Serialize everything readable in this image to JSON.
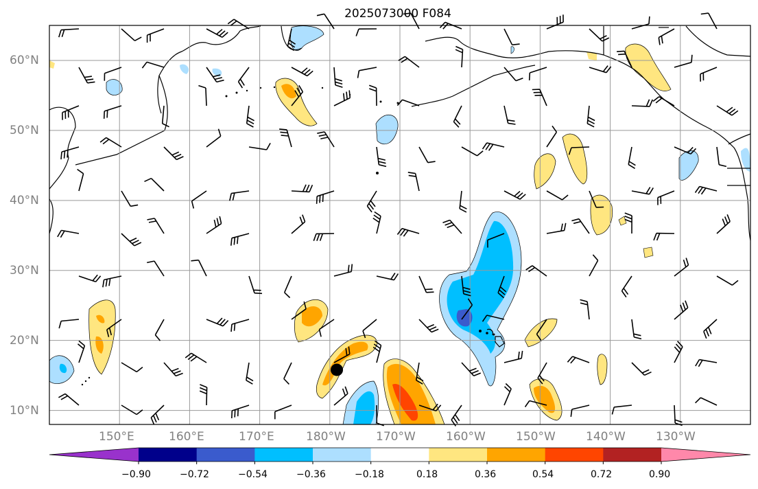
{
  "title": "2025073000 F084",
  "lat_labels": [
    "60°N",
    "50°N",
    "40°N",
    "30°N",
    "20°N",
    "10°N"
  ],
  "lon_labels": [
    "150°E",
    "160°E",
    "170°E",
    "180°W",
    "170°W",
    "160°W",
    "150°W",
    "140°W",
    "130°W"
  ],
  "colorbar": {
    "tick_labels": [
      "−0.90",
      "−0.72",
      "−0.54",
      "−0.36",
      "−0.18",
      "0.18",
      "0.36",
      "0.54",
      "0.72",
      "0.90"
    ],
    "colors": [
      "#9932CC",
      "#00008B",
      "#3A5BCD",
      "#00BFFF",
      "#ADDFFF",
      "#FFFFFF",
      "#FFE680",
      "#FFA500",
      "#FF4500",
      "#B22222",
      "#FF88AA"
    ]
  },
  "map_extent": {
    "lon_min": 140,
    "lon_max": 240,
    "lat_min": 8,
    "lat_max": 65
  },
  "marker": {
    "lon": 181,
    "lat": 15.8
  }
}
